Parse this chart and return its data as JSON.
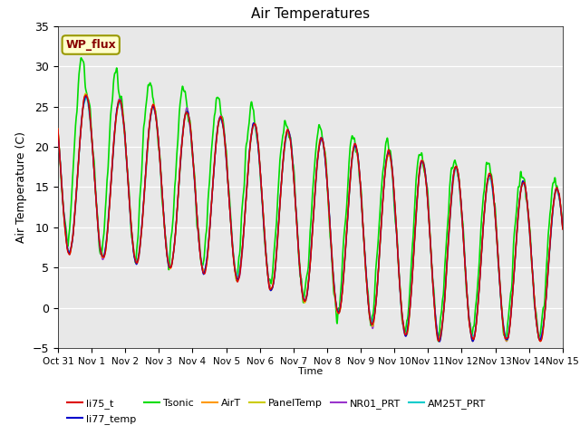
{
  "title": "Air Temperatures",
  "xlabel": "Time",
  "ylabel": "Air Temperature (C)",
  "ylim": [
    -5,
    35
  ],
  "xlim_days": [
    0,
    15
  ],
  "tick_labels": [
    "Oct 31",
    "Nov 1",
    "Nov 2",
    "Nov 3",
    "Nov 4",
    "Nov 5",
    "Nov 6",
    "Nov 7",
    "Nov 8",
    "Nov 9",
    "Nov 10",
    "Nov 11",
    "Nov 12",
    "Nov 13",
    "Nov 14",
    "Nov 15"
  ],
  "series_colors": {
    "li75_t": "#dd0000",
    "li77_temp": "#0000cc",
    "Tsonic": "#00dd00",
    "AirT": "#ff9900",
    "PanelTemp": "#cccc00",
    "NR01_PRT": "#9933cc",
    "AM25T_PRT": "#00cccc"
  },
  "background_color": "#e8e8e8",
  "wp_flux_box_color": "#ffffcc",
  "wp_flux_text_color": "#880000",
  "wp_flux_border_color": "#999900",
  "yticks": [
    -5,
    0,
    5,
    10,
    15,
    20,
    25,
    30,
    35
  ]
}
